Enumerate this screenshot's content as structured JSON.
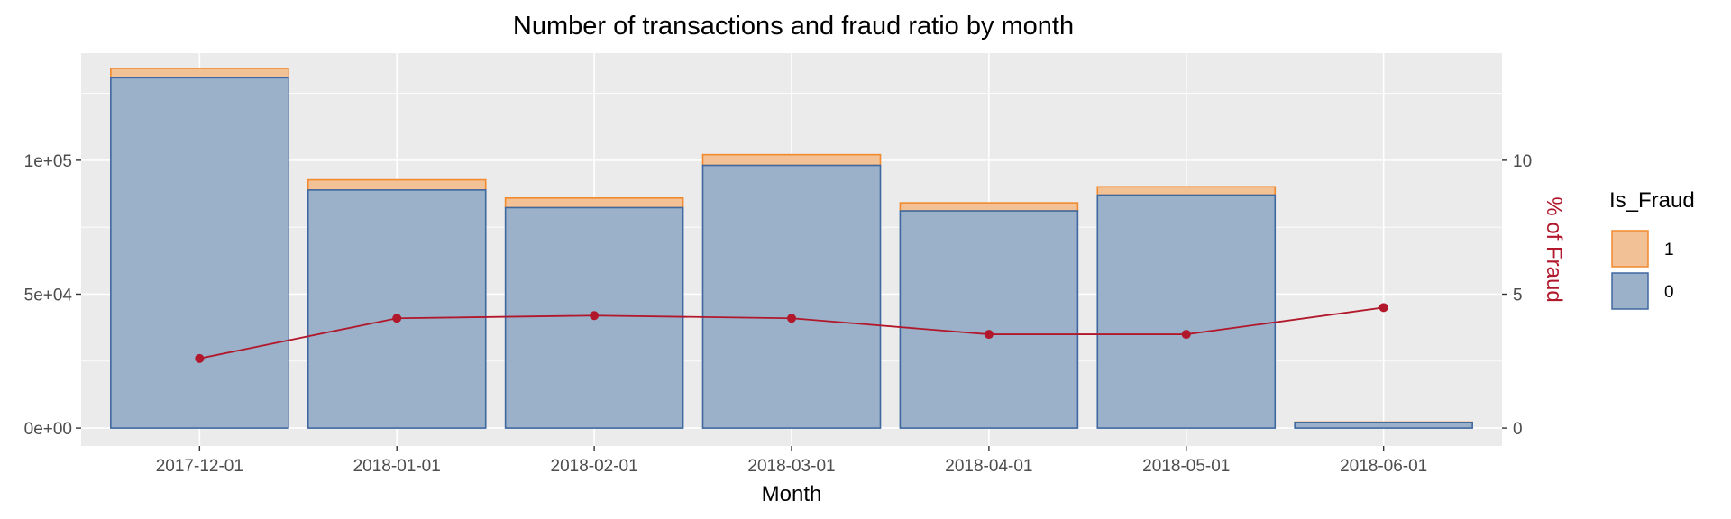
{
  "chart_data": {
    "type": "bar",
    "title": "Number of transactions and fraud ratio by month",
    "xlabel": "Month",
    "ylabel": "",
    "y2label": "% of Fraud",
    "categories": [
      "2017-12-01",
      "2018-01-01",
      "2018-02-01",
      "2018-03-01",
      "2018-04-01",
      "2018-05-01",
      "2018-06-01"
    ],
    "series": [
      {
        "name": "0",
        "values": [
          130800,
          88900,
          82300,
          98100,
          81100,
          87000,
          2100
        ],
        "color": "#9ab1c9",
        "stroke": "#3f68a1"
      },
      {
        "name": "1",
        "values": [
          3500,
          3800,
          3600,
          4000,
          3000,
          3100,
          100
        ],
        "color": "#f2c195",
        "stroke": "#f18a2e"
      }
    ],
    "stacked": true,
    "line": {
      "name": "% of Fraud",
      "axis": "right",
      "values": [
        2.6,
        4.1,
        4.2,
        4.1,
        3.5,
        3.5,
        4.5
      ],
      "color": "#b2182b"
    },
    "ylim": [
      -6700,
      140000
    ],
    "y2lim": [
      -0.67,
      14.0
    ],
    "yticks": [
      0,
      50000,
      100000
    ],
    "ytick_labels": [
      "0e+00",
      "5e+04",
      "1e+05"
    ],
    "y2ticks": [
      0,
      5,
      10
    ],
    "y2tick_labels": [
      "0",
      "5",
      "10"
    ],
    "legend": {
      "title": "Is_Fraud",
      "position": "right",
      "entries": [
        "1",
        "0"
      ]
    },
    "grid": true,
    "colors": {
      "panel": "#ebebeb",
      "grid": "#ffffff",
      "right_axis_title": "#b2182b"
    }
  }
}
